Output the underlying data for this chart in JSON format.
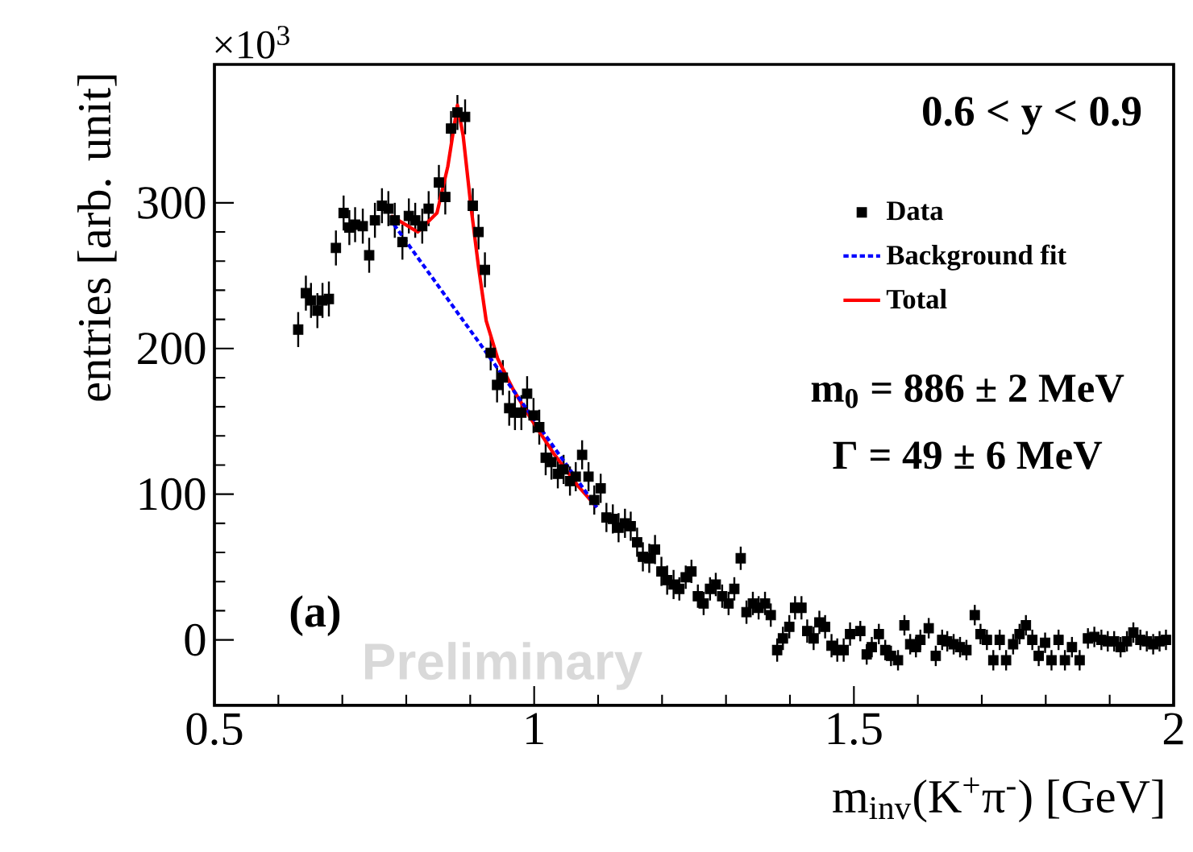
{
  "chart_data": {
    "type": "scatter",
    "xlabel": "m$_{inv}$(K$^{+}$π$^{-}$) [GeV]",
    "ylabel": "entries [arb. unit]",
    "annotations": [
      "0.6 < y < 0.9",
      "m$_{0}$ = 886 ± 2 MeV",
      "Γ = 49 ± 6 MeV",
      "(a)",
      "×10$^{3}$",
      "Preliminary"
    ],
    "xlim": [
      0.5,
      2
    ],
    "xticks": [
      0.5,
      1,
      1.5,
      2
    ],
    "ylim": [
      -45,
      395
    ],
    "yticks": [
      0,
      100,
      200,
      300
    ],
    "legend": "top right",
    "series": [
      {
        "name": "Data",
        "color": "#000000",
        "marker": "square",
        "x": [
          0.631,
          0.643,
          0.651,
          0.661,
          0.669,
          0.679,
          0.69,
          0.702,
          0.711,
          0.72,
          0.732,
          0.742,
          0.751,
          0.762,
          0.772,
          0.782,
          0.794,
          0.804,
          0.814,
          0.825,
          0.835,
          0.851,
          0.861,
          0.87,
          0.88,
          0.892,
          0.904,
          0.913,
          0.923,
          0.932,
          0.942,
          0.951,
          0.961,
          0.97,
          0.98,
          0.989,
          0.999,
          1.008,
          1.018,
          1.027,
          1.037,
          1.046,
          1.056,
          1.065,
          1.075,
          1.085,
          1.094,
          1.104,
          1.113,
          1.123,
          1.132,
          1.142,
          1.151,
          1.161,
          1.17,
          1.18,
          1.189,
          1.199,
          1.208,
          1.218,
          1.227,
          1.237,
          1.246,
          1.256,
          1.265,
          1.275,
          1.284,
          1.294,
          1.304,
          1.313,
          1.323,
          1.332,
          1.342,
          1.351,
          1.361,
          1.37,
          1.38,
          1.389,
          1.399,
          1.408,
          1.418,
          1.427,
          1.437,
          1.446,
          1.455,
          1.465,
          1.474,
          1.484,
          1.494,
          1.51,
          1.52,
          1.528,
          1.539,
          1.549,
          1.558,
          1.569,
          1.579,
          1.588,
          1.597,
          1.604,
          1.617,
          1.628,
          1.638,
          1.646,
          1.656,
          1.666,
          1.676,
          1.689,
          1.698,
          1.708,
          1.718,
          1.728,
          1.738,
          1.749,
          1.759,
          1.769,
          1.779,
          1.789,
          1.799,
          1.809,
          1.82,
          1.83,
          1.841,
          1.853,
          1.866,
          1.876,
          1.887,
          1.897,
          1.907,
          1.917,
          1.927,
          1.937,
          1.948,
          1.958,
          1.968,
          1.978,
          1.988
        ],
        "values": [
          213,
          238,
          233,
          226,
          233,
          234,
          269,
          293,
          283,
          285,
          284,
          264,
          288,
          298,
          296,
          288,
          273,
          291,
          288,
          284,
          296,
          314,
          304,
          351,
          362,
          359,
          298,
          280,
          254,
          197,
          175,
          180,
          159,
          156,
          156,
          169,
          154,
          146,
          125,
          122,
          114,
          117,
          109,
          112,
          127,
          112,
          96,
          104,
          84,
          83,
          77,
          80,
          78,
          67,
          57,
          56,
          62,
          47,
          41,
          38,
          35,
          43,
          47,
          30,
          25,
          35,
          38,
          30,
          25,
          35,
          56,
          19,
          25,
          22,
          25,
          17,
          -7,
          1,
          9,
          22,
          22,
          6,
          1,
          12,
          9,
          -4,
          -7,
          -7,
          4,
          6,
          -10,
          -5,
          4,
          -7,
          -11,
          -14,
          10,
          -3,
          -5,
          0,
          8,
          -11,
          0,
          -1,
          -3,
          -5,
          -7,
          17,
          4,
          0,
          -14,
          0,
          -14,
          -3,
          4,
          10,
          0,
          -11,
          -2,
          -14,
          0,
          -14,
          -5,
          -14,
          1,
          2,
          0,
          -1,
          -1,
          -5,
          -1,
          5,
          0,
          -1,
          -3,
          -1,
          0
        ],
        "errors": [
          12,
          12,
          12,
          12,
          12,
          12,
          12,
          12,
          12,
          12,
          12,
          12,
          12,
          12,
          12,
          12,
          12,
          12,
          12,
          12,
          12,
          12,
          12,
          12,
          12,
          12,
          12,
          12,
          12,
          12,
          12,
          12,
          12,
          12,
          12,
          12,
          12,
          12,
          12,
          12,
          10,
          10,
          10,
          10,
          10,
          10,
          10,
          10,
          10,
          10,
          10,
          10,
          10,
          10,
          10,
          10,
          10,
          10,
          10,
          10,
          8,
          8,
          8,
          8,
          8,
          8,
          8,
          8,
          8,
          8,
          8,
          8,
          8,
          8,
          8,
          8,
          8,
          8,
          8,
          8,
          8,
          8,
          8,
          8,
          8,
          8,
          8,
          8,
          8,
          7,
          7,
          7,
          7,
          7,
          7,
          7,
          7,
          7,
          7,
          7,
          7,
          7,
          7,
          7,
          7,
          7,
          7,
          7,
          7,
          7,
          7,
          7,
          7,
          7,
          7,
          7,
          7,
          7,
          7,
          7,
          7,
          7,
          7,
          7,
          7,
          7,
          7,
          7,
          7,
          7,
          7,
          7,
          7,
          7,
          7,
          7,
          7
        ]
      },
      {
        "name": "Background fit",
        "type": "line",
        "color": "#0000ff",
        "line_style": "dashed",
        "marker": "none",
        "x": [
          0.776,
          0.937,
          1.098
        ],
        "values": [
          288,
          190,
          91
        ]
      },
      {
        "name": "Total",
        "type": "line",
        "color": "#ff0000",
        "line_style": "solid",
        "marker": "none",
        "x": [
          0.776,
          0.818,
          0.848,
          0.865,
          0.88,
          0.889,
          0.901,
          0.913,
          0.925,
          0.943,
          0.967,
          0.996,
          1.032,
          1.068,
          1.098
        ],
        "values": [
          291,
          280,
          293,
          325,
          367,
          346,
          298,
          256,
          219,
          193,
          172,
          151,
          127,
          106,
          91
        ]
      }
    ]
  }
}
